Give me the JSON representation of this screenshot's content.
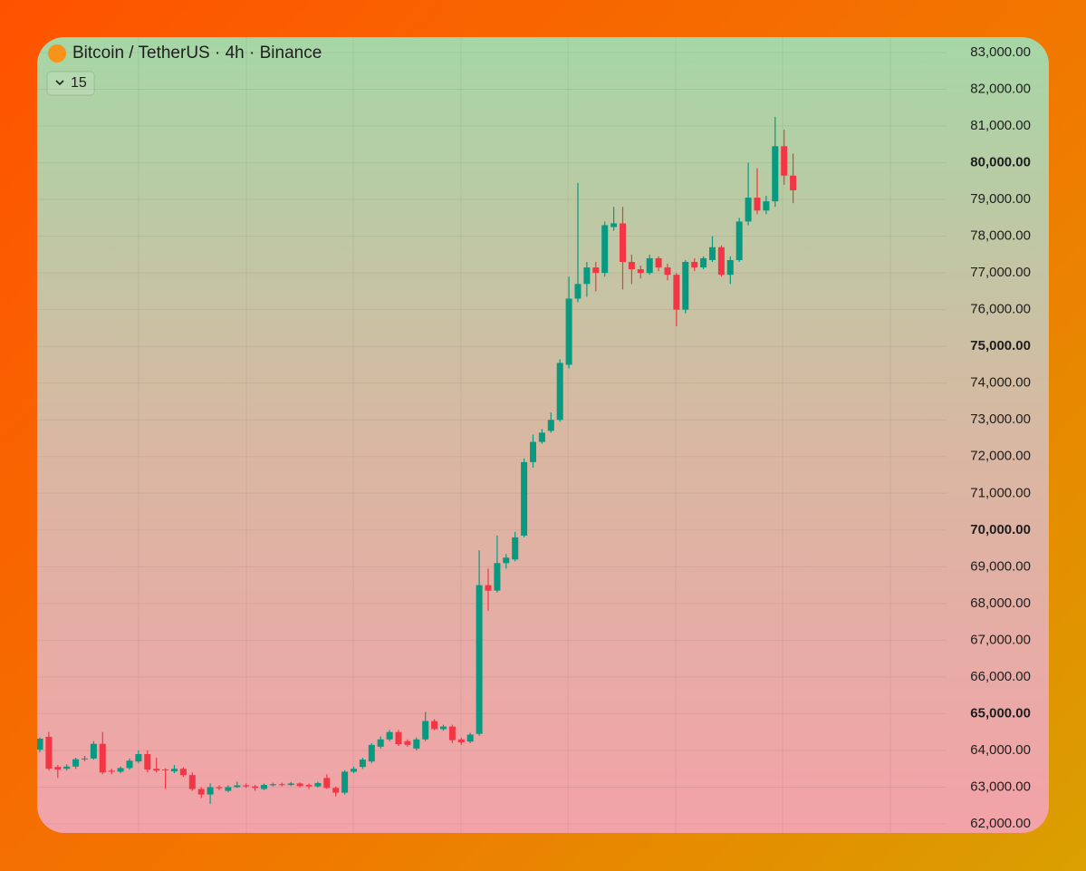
{
  "chart_data": {
    "type": "candlestick",
    "title": "Bitcoin / TetherUS · 4h · Binance",
    "badge": "15",
    "up_color": "#089981",
    "down_color": "#f23645",
    "grid": true,
    "ylim": [
      62000,
      83000
    ],
    "yticks": [
      {
        "value": 83000,
        "label": "83,000.00"
      },
      {
        "value": 82000,
        "label": "82,000.00"
      },
      {
        "value": 81000,
        "label": "81,000.00"
      },
      {
        "value": 80000,
        "label": "80,000.00",
        "bold": true
      },
      {
        "value": 79000,
        "label": "79,000.00"
      },
      {
        "value": 78000,
        "label": "78,000.00"
      },
      {
        "value": 77000,
        "label": "77,000.00"
      },
      {
        "value": 76000,
        "label": "76,000.00"
      },
      {
        "value": 75000,
        "label": "75,000.00",
        "bold": true
      },
      {
        "value": 74000,
        "label": "74,000.00"
      },
      {
        "value": 73000,
        "label": "73,000.00"
      },
      {
        "value": 72000,
        "label": "72,000.00"
      },
      {
        "value": 71000,
        "label": "71,000.00"
      },
      {
        "value": 70000,
        "label": "70,000.00",
        "bold": true
      },
      {
        "value": 69000,
        "label": "69,000.00"
      },
      {
        "value": 68000,
        "label": "68,000.00"
      },
      {
        "value": 67000,
        "label": "67,000.00"
      },
      {
        "value": 66000,
        "label": "66,000.00"
      },
      {
        "value": 65000,
        "label": "65,000.00",
        "bold": true
      },
      {
        "value": 64000,
        "label": "64,000.00"
      },
      {
        "value": 63000,
        "label": "63,000.00"
      },
      {
        "value": 62000,
        "label": "62,000.00"
      }
    ],
    "open": [
      64020,
      64370,
      63550,
      63500,
      63560,
      63760,
      63780,
      64180,
      63450,
      63420,
      63520,
      63700,
      63900,
      63500,
      63480,
      63430,
      63500,
      63330,
      62950,
      62800,
      63000,
      62900,
      63000,
      63050,
      63020,
      62950,
      63050,
      63080,
      63060,
      63100,
      63060,
      63020,
      63250,
      62980,
      62850,
      63420,
      63550,
      63700,
      64100,
      64300,
      64500,
      64250,
      64050,
      64300,
      64800,
      64580,
      64650,
      64300,
      64240,
      64450,
      68500,
      68350,
      69100,
      69200,
      69850,
      71850,
      72400,
      72700,
      73000,
      74500,
      76300,
      76700,
      77150,
      77000,
      78250,
      78350,
      77300,
      77100,
      77000,
      77400,
      77150,
      76950,
      76000,
      77300,
      77150,
      77350,
      77700,
      76950,
      77350,
      78400,
      79050,
      78700,
      78950,
      80450,
      79650
    ],
    "high": [
      64350,
      64500,
      63600,
      63620,
      63800,
      63850,
      64250,
      64500,
      63500,
      63560,
      63780,
      64000,
      64000,
      63800,
      63520,
      63600,
      63540,
      63400,
      63000,
      63100,
      63050,
      63050,
      63150,
      63100,
      63060,
      63100,
      63120,
      63120,
      63140,
      63130,
      63100,
      63150,
      63350,
      63020,
      63460,
      63560,
      63800,
      64200,
      64380,
      64560,
      64560,
      64300,
      64350,
      65050,
      64850,
      64700,
      64700,
      64350,
      64480,
      69450,
      68950,
      69850,
      69350,
      69950,
      71950,
      72600,
      72750,
      73200,
      74650,
      76900,
      79450,
      77300,
      77300,
      78400,
      78800,
      78800,
      77500,
      77200,
      77500,
      77450,
      77250,
      77000,
      77350,
      77400,
      77450,
      78000,
      77750,
      77450,
      78500,
      80000,
      79850,
      79100,
      81250,
      80900,
      80250
    ],
    "low": [
      63950,
      63450,
      63250,
      63450,
      63500,
      63700,
      63750,
      63350,
      63350,
      63380,
      63480,
      63650,
      63400,
      63400,
      62950,
      63380,
      63280,
      62900,
      62700,
      62550,
      62920,
      62860,
      62980,
      62980,
      62900,
      62920,
      63020,
      63020,
      63030,
      62990,
      62950,
      62990,
      62950,
      62750,
      62800,
      63380,
      63500,
      63650,
      64050,
      64250,
      64120,
      64100,
      64000,
      64250,
      64550,
      64540,
      64200,
      64150,
      64200,
      64400,
      67800,
      68300,
      68950,
      69150,
      69800,
      71700,
      72350,
      72650,
      72950,
      74400,
      76200,
      76350,
      76500,
      76900,
      78150,
      76550,
      76700,
      76850,
      76950,
      77050,
      76800,
      75550,
      75900,
      77050,
      77100,
      77300,
      76900,
      76700,
      77300,
      78300,
      78600,
      78600,
      78800,
      79400,
      78900
    ],
    "close": [
      64320,
      63500,
      63480,
      63560,
      63760,
      63780,
      64180,
      63400,
      63420,
      63520,
      63720,
      63900,
      63480,
      63450,
      63460,
      63500,
      63330,
      62950,
      62800,
      63000,
      62970,
      63000,
      63050,
      63020,
      62980,
      63060,
      63080,
      63060,
      63100,
      63030,
      63020,
      63110,
      62980,
      62850,
      63420,
      63500,
      63750,
      64150,
      64300,
      64500,
      64170,
      64150,
      64300,
      64800,
      64580,
      64650,
      64280,
      64220,
      64430,
      68500,
      68350,
      69100,
      69250,
      69800,
      71850,
      72400,
      72650,
      73000,
      74550,
      76300,
      76700,
      77150,
      77000,
      78300,
      78350,
      77300,
      77100,
      77000,
      77400,
      77150,
      76950,
      76000,
      77300,
      77150,
      77400,
      77700,
      76950,
      77350,
      78400,
      79050,
      78700,
      78950,
      80450,
      79650,
      79250
    ]
  }
}
